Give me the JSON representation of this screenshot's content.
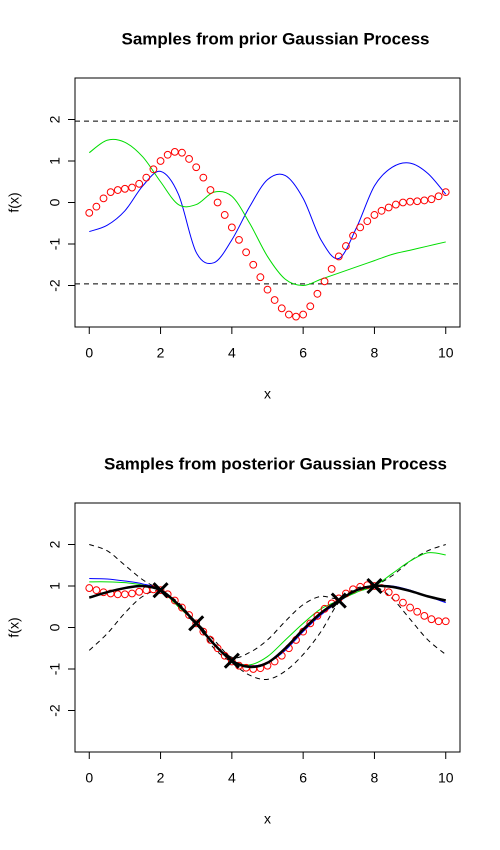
{
  "chart_data": [
    {
      "type": "line",
      "title": "Samples from prior Gaussian Process",
      "xlabel": "x",
      "ylabel": "f(x)",
      "xlim": [
        -0.4,
        10.4
      ],
      "ylim": [
        -3,
        3
      ],
      "xticks": [
        0,
        2,
        4,
        6,
        8,
        10
      ],
      "yticks": [
        -2,
        -1,
        0,
        1,
        2
      ],
      "hlines": [
        1.96,
        -1.96
      ],
      "series": [
        {
          "mode": "line",
          "color": "#0000ff",
          "width": 1,
          "x": [
            0,
            0.5,
            1,
            1.5,
            2,
            2.5,
            3,
            3.5,
            4,
            4.5,
            5,
            5.5,
            6,
            6.5,
            7,
            7.5,
            8,
            8.5,
            9,
            9.5,
            10
          ],
          "values": [
            -0.7,
            -0.55,
            -0.2,
            0.4,
            0.75,
            0.2,
            -1.2,
            -1.45,
            -0.9,
            -0.1,
            0.55,
            0.65,
            0.1,
            -0.9,
            -1.35,
            -0.6,
            0.4,
            0.85,
            0.95,
            0.7,
            0.2
          ]
        },
        {
          "mode": "line",
          "color": "#00dd00",
          "width": 1,
          "x": [
            0,
            0.5,
            1,
            1.5,
            2,
            2.5,
            3,
            3.5,
            4,
            4.5,
            5,
            5.5,
            6,
            6.5,
            7,
            7.5,
            8,
            8.5,
            9,
            9.5,
            10
          ],
          "values": [
            1.2,
            1.5,
            1.45,
            1.1,
            0.5,
            -0.05,
            -0.05,
            0.25,
            0.15,
            -0.5,
            -1.3,
            -1.85,
            -2.0,
            -1.85,
            -1.7,
            -1.55,
            -1.4,
            -1.25,
            -1.15,
            -1.05,
            -0.95
          ]
        },
        {
          "mode": "points",
          "color": "#ff0000",
          "x": [
            0,
            0.2,
            0.4,
            0.6,
            0.8,
            1,
            1.2,
            1.4,
            1.6,
            1.8,
            2,
            2.2,
            2.4,
            2.6,
            2.8,
            3,
            3.2,
            3.4,
            3.6,
            3.8,
            4,
            4.2,
            4.4,
            4.6,
            4.8,
            5,
            5.2,
            5.4,
            5.6,
            5.8,
            6,
            6.2,
            6.4,
            6.6,
            6.8,
            7,
            7.2,
            7.4,
            7.6,
            7.8,
            8,
            8.2,
            8.4,
            8.6,
            8.8,
            9,
            9.2,
            9.4,
            9.6,
            9.8,
            10
          ],
          "values": [
            -0.25,
            -0.1,
            0.1,
            0.25,
            0.3,
            0.33,
            0.36,
            0.45,
            0.6,
            0.8,
            1.0,
            1.15,
            1.22,
            1.2,
            1.05,
            0.85,
            0.6,
            0.3,
            0.0,
            -0.3,
            -0.6,
            -0.9,
            -1.2,
            -1.5,
            -1.8,
            -2.1,
            -2.35,
            -2.55,
            -2.7,
            -2.75,
            -2.7,
            -2.5,
            -2.2,
            -1.9,
            -1.6,
            -1.3,
            -1.05,
            -0.8,
            -0.6,
            -0.45,
            -0.3,
            -0.2,
            -0.12,
            -0.05,
            0.0,
            0.02,
            0.03,
            0.05,
            0.08,
            0.15,
            0.25
          ]
        }
      ]
    },
    {
      "type": "line",
      "title": "Samples from posterior Gaussian Process",
      "xlabel": "x",
      "ylabel": "f(x)",
      "xlim": [
        -0.4,
        10.4
      ],
      "ylim": [
        -3,
        3
      ],
      "xticks": [
        0,
        2,
        4,
        6,
        8,
        10
      ],
      "yticks": [
        -2,
        -1,
        0,
        1,
        2
      ],
      "series": [
        {
          "mode": "line",
          "color": "#000000",
          "width": 1,
          "dash": true,
          "x": [
            0,
            0.5,
            1,
            1.5,
            2,
            2.5,
            3,
            3.5,
            4,
            4.5,
            5,
            5.5,
            6,
            6.5,
            7,
            7.5,
            8,
            8.5,
            9,
            9.5,
            10
          ],
          "values": [
            2.0,
            1.85,
            1.5,
            1.15,
            0.9,
            0.6,
            0.12,
            -0.3,
            -0.72,
            -0.6,
            -0.3,
            0.15,
            0.55,
            0.75,
            0.7,
            0.95,
            1.02,
            1.25,
            1.6,
            1.85,
            2.0
          ]
        },
        {
          "mode": "line",
          "color": "#000000",
          "width": 1,
          "dash": true,
          "x": [
            0,
            0.5,
            1,
            1.5,
            2,
            2.5,
            3,
            3.5,
            4,
            4.5,
            5,
            5.5,
            6,
            6.5,
            7,
            7.5,
            8,
            8.5,
            9,
            9.5,
            10
          ],
          "values": [
            -0.55,
            -0.15,
            0.35,
            0.75,
            0.88,
            0.5,
            0.08,
            -0.5,
            -0.85,
            -1.15,
            -1.25,
            -1.05,
            -0.65,
            -0.1,
            0.6,
            0.85,
            0.98,
            0.7,
            0.2,
            -0.3,
            -0.65
          ]
        },
        {
          "mode": "line",
          "color": "#0000ff",
          "width": 1,
          "x": [
            0,
            0.5,
            1,
            1.5,
            2,
            2.5,
            3,
            3.5,
            4,
            4.5,
            5,
            5.5,
            6,
            6.5,
            7,
            7.5,
            8,
            8.5,
            9,
            9.5,
            10
          ],
          "values": [
            1.18,
            1.17,
            1.12,
            1.05,
            0.92,
            0.55,
            0.1,
            -0.42,
            -0.8,
            -0.92,
            -0.85,
            -0.55,
            -0.1,
            0.3,
            0.62,
            0.88,
            1.0,
            1.0,
            0.9,
            0.75,
            0.6
          ]
        },
        {
          "mode": "line",
          "color": "#00dd00",
          "width": 1,
          "x": [
            0,
            0.5,
            1,
            1.5,
            2,
            2.5,
            3,
            3.5,
            4,
            4.5,
            5,
            5.5,
            6,
            6.5,
            7,
            7.5,
            8,
            8.5,
            9,
            9.5,
            10
          ],
          "values": [
            1.1,
            1.1,
            1.08,
            1.02,
            0.9,
            0.5,
            0.1,
            -0.4,
            -0.8,
            -0.9,
            -0.7,
            -0.3,
            0.1,
            0.45,
            0.65,
            0.85,
            1.0,
            1.3,
            1.6,
            1.8,
            1.75
          ]
        },
        {
          "mode": "points",
          "color": "#ff0000",
          "x": [
            0,
            0.2,
            0.4,
            0.6,
            0.8,
            1,
            1.2,
            1.4,
            1.6,
            1.8,
            2,
            2.2,
            2.4,
            2.6,
            2.8,
            3,
            3.2,
            3.4,
            3.6,
            3.8,
            4,
            4.2,
            4.4,
            4.6,
            4.8,
            5,
            5.2,
            5.4,
            5.6,
            5.8,
            6,
            6.2,
            6.4,
            6.6,
            6.8,
            7,
            7.2,
            7.4,
            7.6,
            7.8,
            8,
            8.2,
            8.4,
            8.6,
            8.8,
            9,
            9.2,
            9.4,
            9.6,
            9.8,
            10
          ],
          "values": [
            0.95,
            0.9,
            0.85,
            0.82,
            0.8,
            0.8,
            0.82,
            0.86,
            0.9,
            0.92,
            0.9,
            0.8,
            0.65,
            0.48,
            0.3,
            0.1,
            -0.1,
            -0.3,
            -0.5,
            -0.68,
            -0.82,
            -0.92,
            -0.97,
            -1.0,
            -0.98,
            -0.92,
            -0.82,
            -0.68,
            -0.5,
            -0.3,
            -0.1,
            0.1,
            0.28,
            0.45,
            0.58,
            0.7,
            0.82,
            0.92,
            0.98,
            1.02,
            1.0,
            0.95,
            0.85,
            0.72,
            0.6,
            0.48,
            0.38,
            0.28,
            0.2,
            0.15,
            0.15
          ]
        },
        {
          "mode": "line",
          "color": "#000000",
          "width": 2.5,
          "x": [
            0,
            0.5,
            1,
            1.5,
            2,
            2.5,
            3,
            3.5,
            4,
            4.5,
            5,
            5.5,
            6,
            6.5,
            7,
            7.5,
            8,
            8.5,
            9,
            9.5,
            10
          ],
          "values": [
            0.72,
            0.85,
            0.95,
            1.0,
            0.9,
            0.55,
            0.1,
            -0.4,
            -0.8,
            -0.95,
            -0.85,
            -0.5,
            -0.05,
            0.35,
            0.65,
            0.9,
            1.0,
            0.98,
            0.88,
            0.75,
            0.65
          ]
        },
        {
          "mode": "cross",
          "color": "#000000",
          "x": [
            2,
            3,
            4,
            7,
            8
          ],
          "values": [
            0.9,
            0.1,
            -0.8,
            0.65,
            1.0
          ]
        }
      ]
    }
  ]
}
